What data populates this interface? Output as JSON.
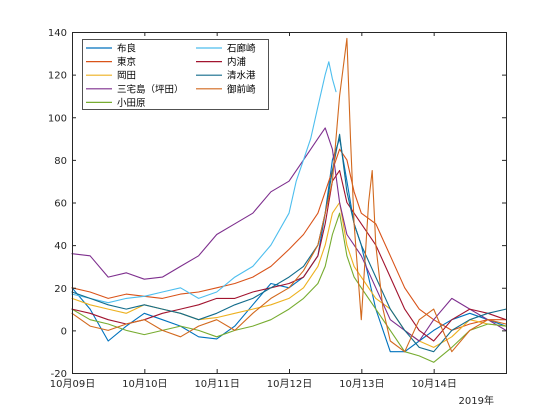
{
  "chart_data": {
    "type": "line",
    "title": "",
    "xlabel": "",
    "ylabel": "",
    "year_label": "2019年",
    "x_ticks": [
      "10月09日",
      "10月10日",
      "10月11日",
      "10月12日",
      "10月13日",
      "10月14日"
    ],
    "xlim_days": [
      9,
      15
    ],
    "ylim": [
      -20,
      140
    ],
    "y_ticks": [
      -20,
      0,
      20,
      40,
      60,
      80,
      100,
      120,
      140
    ],
    "grid": false,
    "legend_placement": "top-left",
    "series": [
      {
        "name": "布良",
        "color": "#0072BD",
        "x": [
          9.0,
          9.25,
          9.5,
          9.75,
          10.0,
          10.25,
          10.5,
          10.75,
          11.0,
          11.25,
          11.5,
          11.75,
          12.0,
          12.2,
          12.4,
          12.5,
          12.6,
          12.7,
          12.8,
          12.9,
          13.0,
          13.2,
          13.4,
          13.6,
          13.8,
          14.0,
          14.25,
          14.5,
          14.75,
          15.0
        ],
        "y": [
          20,
          10,
          -5,
          2,
          8,
          5,
          2,
          -3,
          -4,
          2,
          12,
          22,
          20,
          25,
          35,
          55,
          80,
          90,
          70,
          50,
          40,
          10,
          -10,
          -10,
          -5,
          0,
          5,
          8,
          5,
          2
        ]
      },
      {
        "name": "東京",
        "color": "#D95319",
        "x": [
          9.0,
          9.25,
          9.5,
          9.75,
          10.0,
          10.25,
          10.5,
          10.75,
          11.0,
          11.25,
          11.5,
          11.75,
          12.0,
          12.2,
          12.4,
          12.5,
          12.6,
          12.7,
          12.8,
          12.9,
          13.0,
          13.2,
          13.4,
          13.6,
          13.8,
          14.0,
          14.25,
          14.5,
          14.75,
          15.0
        ],
        "y": [
          20,
          18,
          15,
          17,
          16,
          15,
          17,
          18,
          20,
          22,
          25,
          30,
          38,
          45,
          55,
          65,
          75,
          85,
          80,
          65,
          55,
          50,
          35,
          20,
          10,
          5,
          0,
          3,
          5,
          5
        ]
      },
      {
        "name": "岡田",
        "color": "#EDB120",
        "x": [
          9.0,
          9.25,
          9.5,
          9.75,
          10.0,
          10.25,
          10.5,
          10.75,
          11.0,
          11.25,
          11.5,
          11.75,
          12.0,
          12.2,
          12.4,
          12.5,
          12.6,
          12.7,
          12.8,
          12.9,
          13.0,
          13.2,
          13.4,
          13.6,
          13.8,
          14.0,
          14.25,
          14.5,
          14.75,
          15.0
        ],
        "y": [
          15,
          12,
          10,
          8,
          12,
          10,
          8,
          5,
          6,
          8,
          10,
          12,
          15,
          20,
          30,
          40,
          55,
          60,
          40,
          30,
          25,
          15,
          10,
          0,
          -5,
          -8,
          -3,
          5,
          3,
          2
        ]
      },
      {
        "name": "三宅島（坪田）",
        "color": "#7E2F8E",
        "x": [
          9.0,
          9.25,
          9.5,
          9.75,
          10.0,
          10.25,
          10.5,
          10.75,
          11.0,
          11.25,
          11.5,
          11.75,
          12.0,
          12.2,
          12.4,
          12.5,
          12.6,
          12.7,
          12.8,
          12.9,
          13.0,
          13.2,
          13.4,
          13.6,
          13.8,
          14.0,
          14.25,
          14.5,
          14.75,
          15.0
        ],
        "y": [
          36,
          35,
          25,
          27,
          24,
          25,
          30,
          35,
          45,
          50,
          55,
          65,
          70,
          80,
          90,
          95,
          85,
          60,
          45,
          40,
          35,
          20,
          5,
          0,
          -5,
          5,
          15,
          10,
          5,
          0
        ]
      },
      {
        "name": "小田原",
        "color": "#77AC30",
        "x": [
          9.0,
          9.25,
          9.5,
          9.75,
          10.0,
          10.25,
          10.5,
          10.75,
          11.0,
          11.25,
          11.5,
          11.75,
          12.0,
          12.2,
          12.4,
          12.5,
          12.6,
          12.7,
          12.8,
          12.9,
          13.0,
          13.2,
          13.4,
          13.6,
          13.8,
          14.0,
          14.25,
          14.5,
          14.75,
          15.0
        ],
        "y": [
          10,
          5,
          3,
          0,
          -2,
          0,
          2,
          0,
          -3,
          0,
          2,
          5,
          10,
          15,
          22,
          30,
          45,
          55,
          35,
          25,
          20,
          10,
          0,
          -10,
          -12,
          -15,
          -8,
          0,
          3,
          2
        ]
      },
      {
        "name": "石廊崎",
        "color": "#4DBEEE",
        "x": [
          9.0,
          9.25,
          9.5,
          9.75,
          10.0,
          10.25,
          10.5,
          10.75,
          11.0,
          11.25,
          11.5,
          11.75,
          12.0,
          12.1,
          12.2,
          12.3,
          12.4,
          12.5,
          12.55,
          12.6,
          12.65
        ],
        "y": [
          17,
          15,
          13,
          15,
          16,
          18,
          20,
          15,
          18,
          25,
          30,
          40,
          55,
          70,
          80,
          90,
          105,
          120,
          126,
          118,
          112
        ]
      },
      {
        "name": "内浦",
        "color": "#A2142F",
        "x": [
          9.0,
          9.25,
          9.5,
          9.75,
          10.0,
          10.25,
          10.5,
          10.75,
          11.0,
          11.25,
          11.5,
          11.75,
          12.0,
          12.2,
          12.4,
          12.5,
          12.6,
          12.7,
          12.8,
          12.9,
          13.0,
          13.2,
          13.4,
          13.6,
          13.8,
          14.0,
          14.25,
          14.5,
          14.75,
          15.0
        ],
        "y": [
          10,
          8,
          5,
          3,
          5,
          8,
          10,
          12,
          15,
          15,
          18,
          20,
          22,
          25,
          35,
          50,
          70,
          75,
          60,
          55,
          50,
          40,
          25,
          10,
          0,
          -5,
          5,
          10,
          8,
          5
        ]
      },
      {
        "name": "清水港",
        "color": "#136C8B",
        "x": [
          9.0,
          9.25,
          9.5,
          9.75,
          10.0,
          10.25,
          10.5,
          10.75,
          11.0,
          11.25,
          11.5,
          11.75,
          12.0,
          12.2,
          12.4,
          12.5,
          12.6,
          12.7,
          12.8,
          12.9,
          13.0,
          13.2,
          13.4,
          13.6,
          13.8,
          14.0,
          14.25,
          14.5,
          14.75,
          15.0
        ],
        "y": [
          18,
          15,
          12,
          10,
          12,
          10,
          8,
          5,
          8,
          12,
          15,
          20,
          25,
          30,
          40,
          55,
          75,
          92,
          65,
          50,
          40,
          25,
          10,
          0,
          -8,
          -10,
          0,
          5,
          8,
          10
        ]
      },
      {
        "name": "御前崎",
        "color": "#D2691E",
        "x": [
          9.0,
          9.25,
          9.5,
          9.75,
          10.0,
          10.25,
          10.5,
          10.75,
          11.0,
          11.25,
          11.5,
          11.75,
          12.0,
          12.2,
          12.4,
          12.5,
          12.6,
          12.7,
          12.8,
          12.85,
          12.9,
          13.0,
          13.1,
          13.15,
          13.2,
          13.3,
          13.4,
          13.6,
          13.8,
          14.0,
          14.25,
          14.5,
          14.75,
          15.0
        ],
        "y": [
          8,
          2,
          0,
          3,
          5,
          0,
          -3,
          2,
          5,
          0,
          8,
          15,
          20,
          28,
          40,
          55,
          70,
          110,
          137,
          90,
          50,
          5,
          60,
          75,
          40,
          10,
          -5,
          -10,
          5,
          10,
          -10,
          0,
          5,
          3
        ]
      }
    ]
  }
}
